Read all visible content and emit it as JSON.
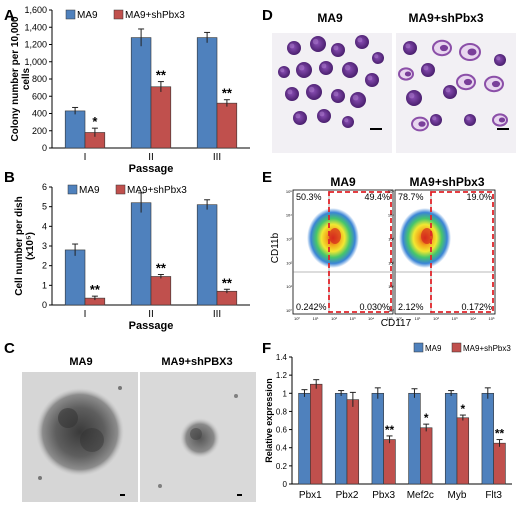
{
  "chart_data": [
    {
      "panel": "A",
      "type": "bar",
      "ylabel": "Colony number per 10,000 cells",
      "xlabel": "Passage",
      "categories": [
        "I",
        "II",
        "III"
      ],
      "ylim": [
        0,
        1600
      ],
      "yticks": [
        "0",
        "200",
        "400",
        "600",
        "800",
        "1,000",
        "1,200",
        "1,400",
        "1,600"
      ],
      "legend": [
        "MA9",
        "MA9+shPbx3"
      ],
      "series": [
        {
          "name": "MA9",
          "values": [
            430,
            1280,
            1280
          ],
          "errors": [
            40,
            100,
            60
          ]
        },
        {
          "name": "MA9+shPbx3",
          "values": [
            180,
            710,
            520
          ],
          "errors": [
            50,
            60,
            40
          ]
        }
      ],
      "significance": [
        "*",
        "**",
        "**"
      ],
      "grid": false
    },
    {
      "panel": "B",
      "type": "bar",
      "ylabel": "Cell number per dish (x10⁵)",
      "xlabel": "Passage",
      "categories": [
        "I",
        "II",
        "III"
      ],
      "ylim": [
        0,
        6
      ],
      "yticks": [
        "0",
        "1",
        "2",
        "3",
        "4",
        "5",
        "6"
      ],
      "legend": [
        "MA9",
        "MA9+shPbx3"
      ],
      "series": [
        {
          "name": "MA9",
          "values": [
            2.8,
            5.2,
            5.1
          ],
          "errors": [
            0.3,
            0.5,
            0.25
          ]
        },
        {
          "name": "MA9+shPbx3",
          "values": [
            0.35,
            1.45,
            0.7
          ],
          "errors": [
            0.1,
            0.1,
            0.1
          ]
        }
      ],
      "significance": [
        "**",
        "**",
        "**"
      ],
      "grid": false
    },
    {
      "panel": "F",
      "type": "bar",
      "ylabel": "Relative expression",
      "xlabel": "",
      "categories": [
        "Pbx1",
        "Pbx2",
        "Pbx3",
        "Mef2c",
        "Myb",
        "Flt3"
      ],
      "ylim": [
        0,
        1.4
      ],
      "yticks": [
        "0",
        "0.2",
        "0.4",
        "0.6",
        "0.8",
        "1",
        "1.2",
        "1.4"
      ],
      "legend": [
        "MA9",
        "MA9+shPbx3"
      ],
      "series": [
        {
          "name": "MA9",
          "values": [
            1.0,
            1.0,
            1.0,
            1.0,
            1.0,
            1.0
          ],
          "errors": [
            0.04,
            0.03,
            0.06,
            0.05,
            0.03,
            0.06
          ]
        },
        {
          "name": "MA9+shPbx3",
          "values": [
            1.1,
            0.93,
            0.49,
            0.62,
            0.73,
            0.45
          ],
          "errors": [
            0.05,
            0.08,
            0.04,
            0.04,
            0.03,
            0.04
          ]
        }
      ],
      "significance": [
        "",
        "",
        "**",
        "*",
        "*",
        "**"
      ],
      "grid": false
    },
    {
      "panel": "E",
      "type": "scatter",
      "xlabel": "CD117",
      "ylabel": "CD11b",
      "titles": [
        "MA9",
        "MA9+shPbx3"
      ],
      "quadrants": [
        {
          "ul": "50.3%",
          "ur": "49.4%",
          "ll": "0.242%",
          "lr": "0.030%"
        },
        {
          "ul": "78.7%",
          "ur": "19.0%",
          "ll": "2.12%",
          "lr": "0.172%"
        }
      ],
      "axis_ticks": [
        "10⁰",
        "10¹",
        "10²",
        "10³",
        "10⁴",
        "10⁵"
      ]
    }
  ],
  "panels": {
    "A": "A",
    "B": "B",
    "C": "C",
    "D": "D",
    "E": "E",
    "F": "F"
  },
  "images": {
    "C_left_title": "MA9",
    "C_right_title": "MA9+shPBX3",
    "D_left_title": "MA9",
    "D_right_title": "MA9+shPbx3"
  },
  "colors": {
    "MA9": "#4f81bd",
    "shPbx3": "#c0504d",
    "gate": "#e0242a",
    "stain": "#7a3f9a"
  }
}
